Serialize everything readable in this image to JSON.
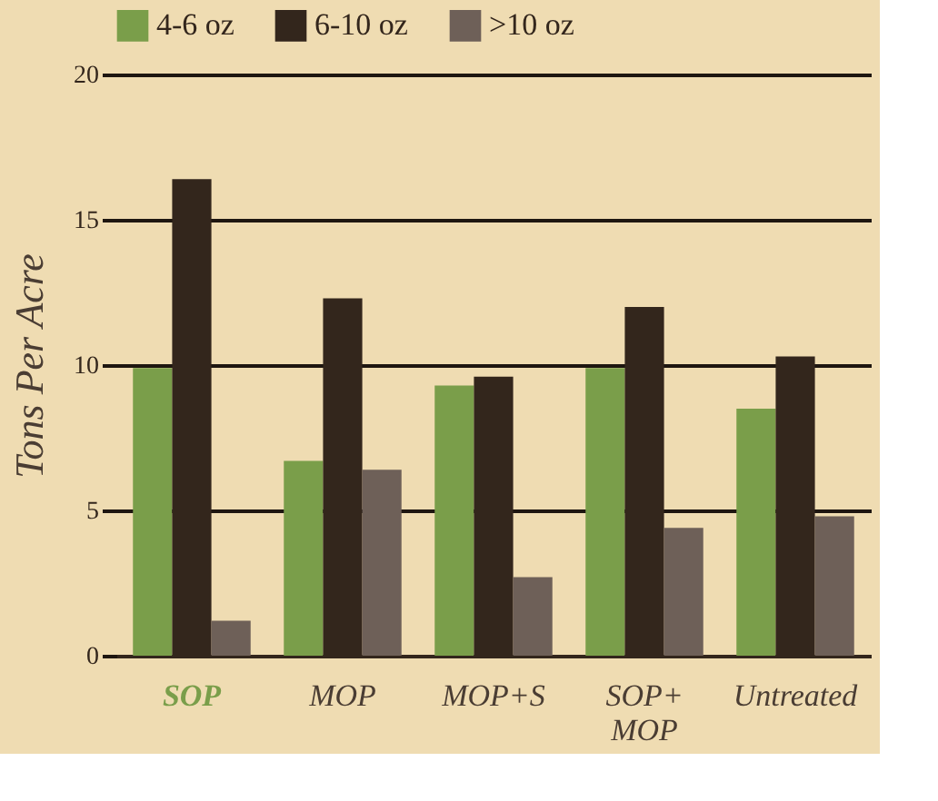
{
  "chart_data": {
    "type": "bar",
    "ylabel": "Tons Per Acre",
    "categories": [
      "SOP",
      "MOP",
      "MOP+S",
      "SOP+ MOP",
      "Untreated"
    ],
    "series": [
      {
        "name": "4-6 oz",
        "color": "#7a9e4a",
        "values": [
          9.9,
          6.7,
          9.3,
          9.9,
          8.5
        ]
      },
      {
        "name": "6-10 oz",
        "color": "#33261c",
        "values": [
          16.4,
          12.3,
          9.6,
          12.0,
          10.3
        ]
      },
      {
        "name": ">10 oz",
        "color": "#6e6058",
        "values": [
          1.2,
          6.4,
          2.7,
          4.4,
          4.8
        ]
      }
    ],
    "ylim": [
      0,
      20
    ],
    "yticks": [
      0,
      5,
      10,
      15,
      20
    ],
    "grid": "y",
    "legend": "top"
  }
}
